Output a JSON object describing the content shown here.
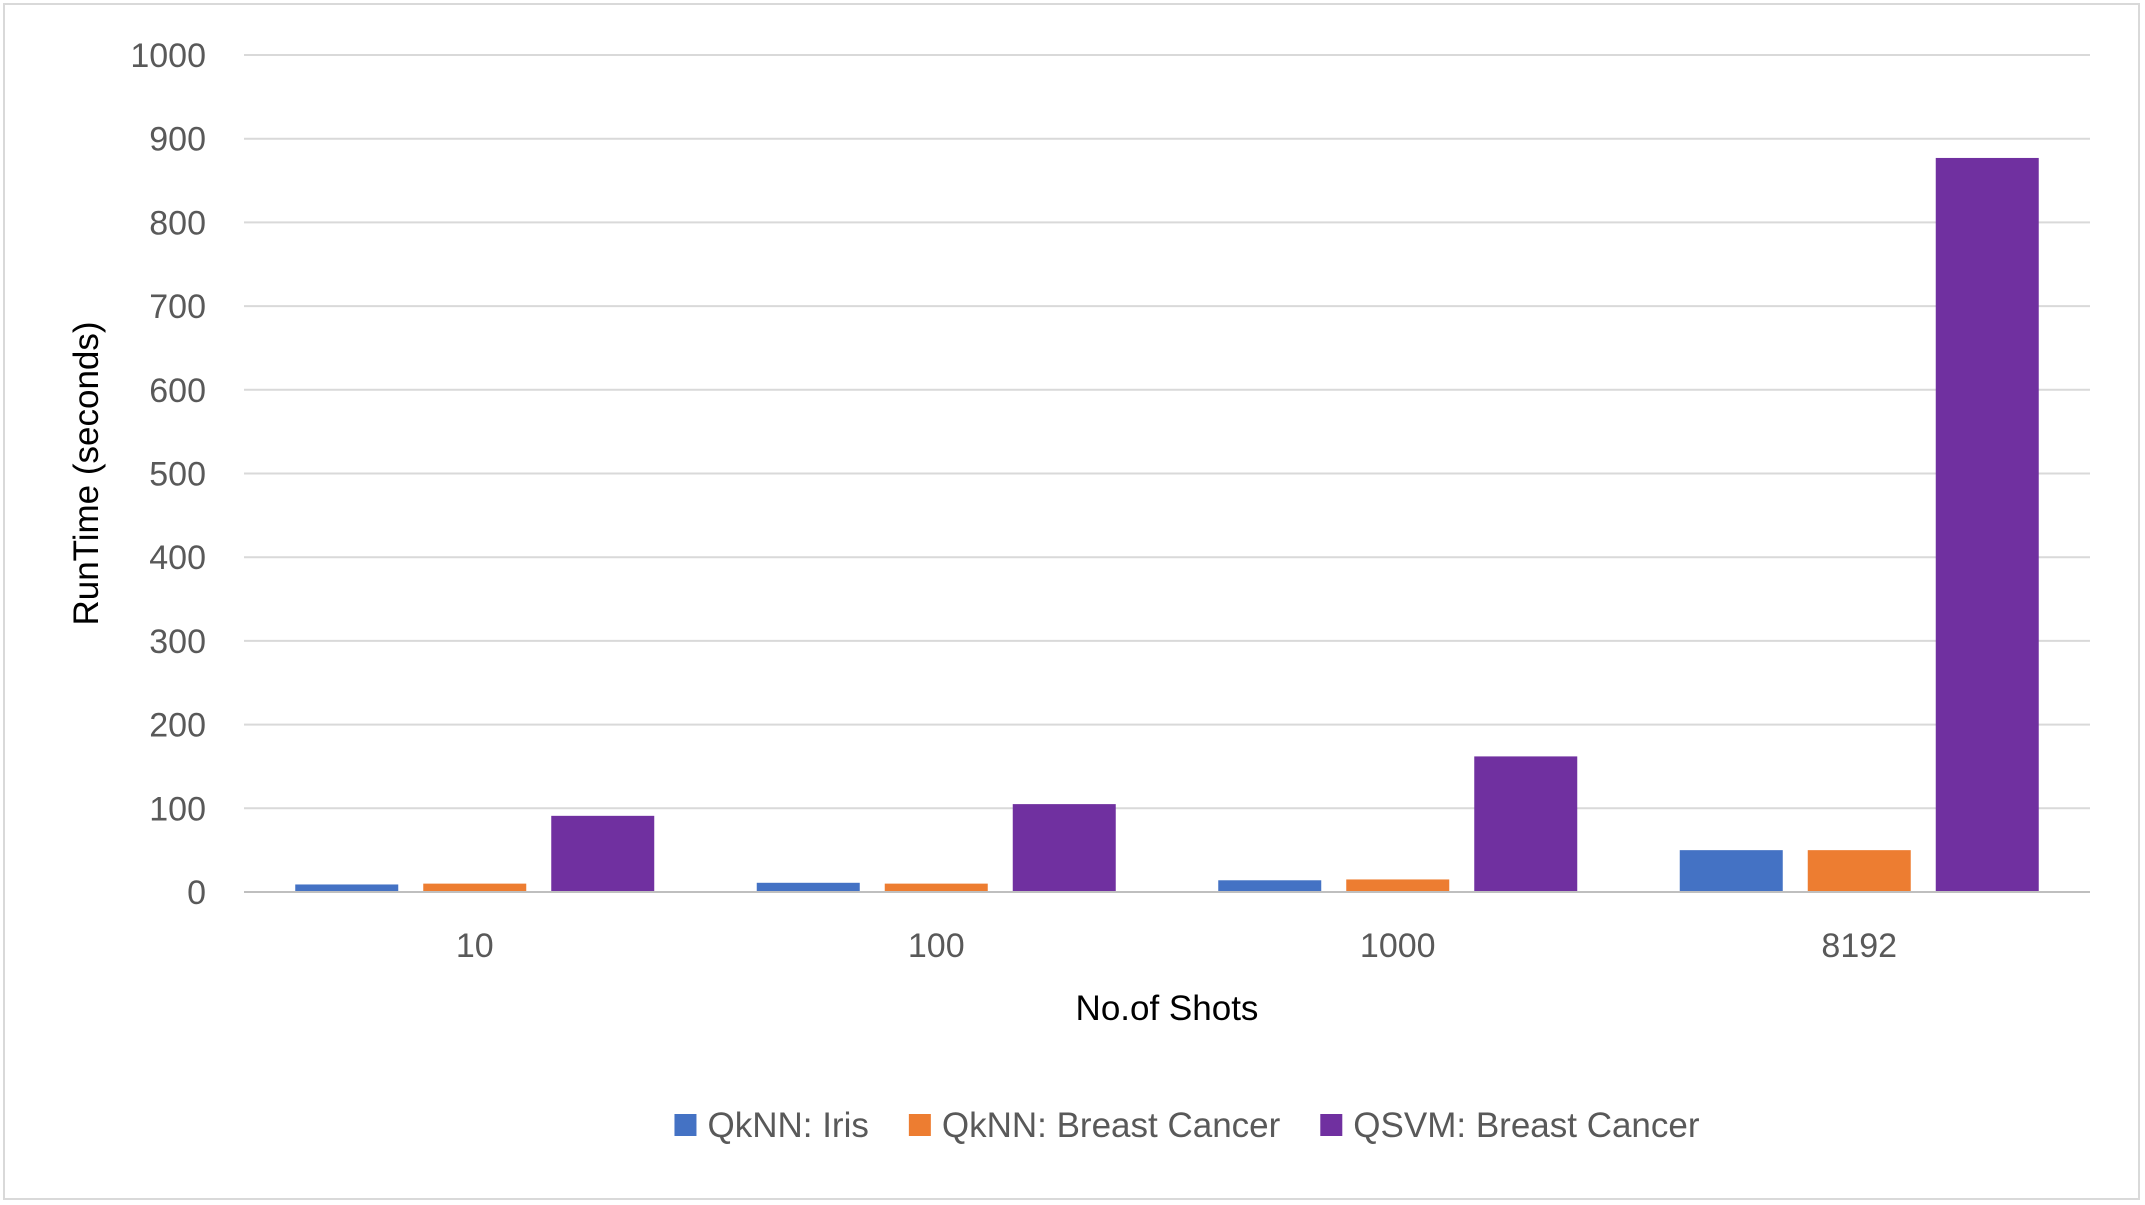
{
  "chart_data": {
    "type": "bar",
    "categories": [
      "10",
      "100",
      "1000",
      "8192"
    ],
    "series": [
      {
        "name": "QkNN: Iris",
        "color": "#4472C4",
        "values": [
          9,
          11,
          14,
          50
        ]
      },
      {
        "name": "QkNN: Breast Cancer",
        "color": "#ED7D31",
        "values": [
          10,
          10,
          15,
          50
        ]
      },
      {
        "name": "QSVM: Breast Cancer",
        "color": "#7030A0",
        "values": [
          91,
          105,
          162,
          877
        ]
      }
    ],
    "title": "",
    "xlabel": "No.of Shots",
    "ylabel": "RunTime (seconds)",
    "ylim": [
      0,
      1000
    ],
    "yticks": [
      "0",
      "100",
      "200",
      "300",
      "400",
      "500",
      "600",
      "700",
      "800",
      "900",
      "1000"
    ],
    "grid": true,
    "legend_position": "bottom"
  }
}
